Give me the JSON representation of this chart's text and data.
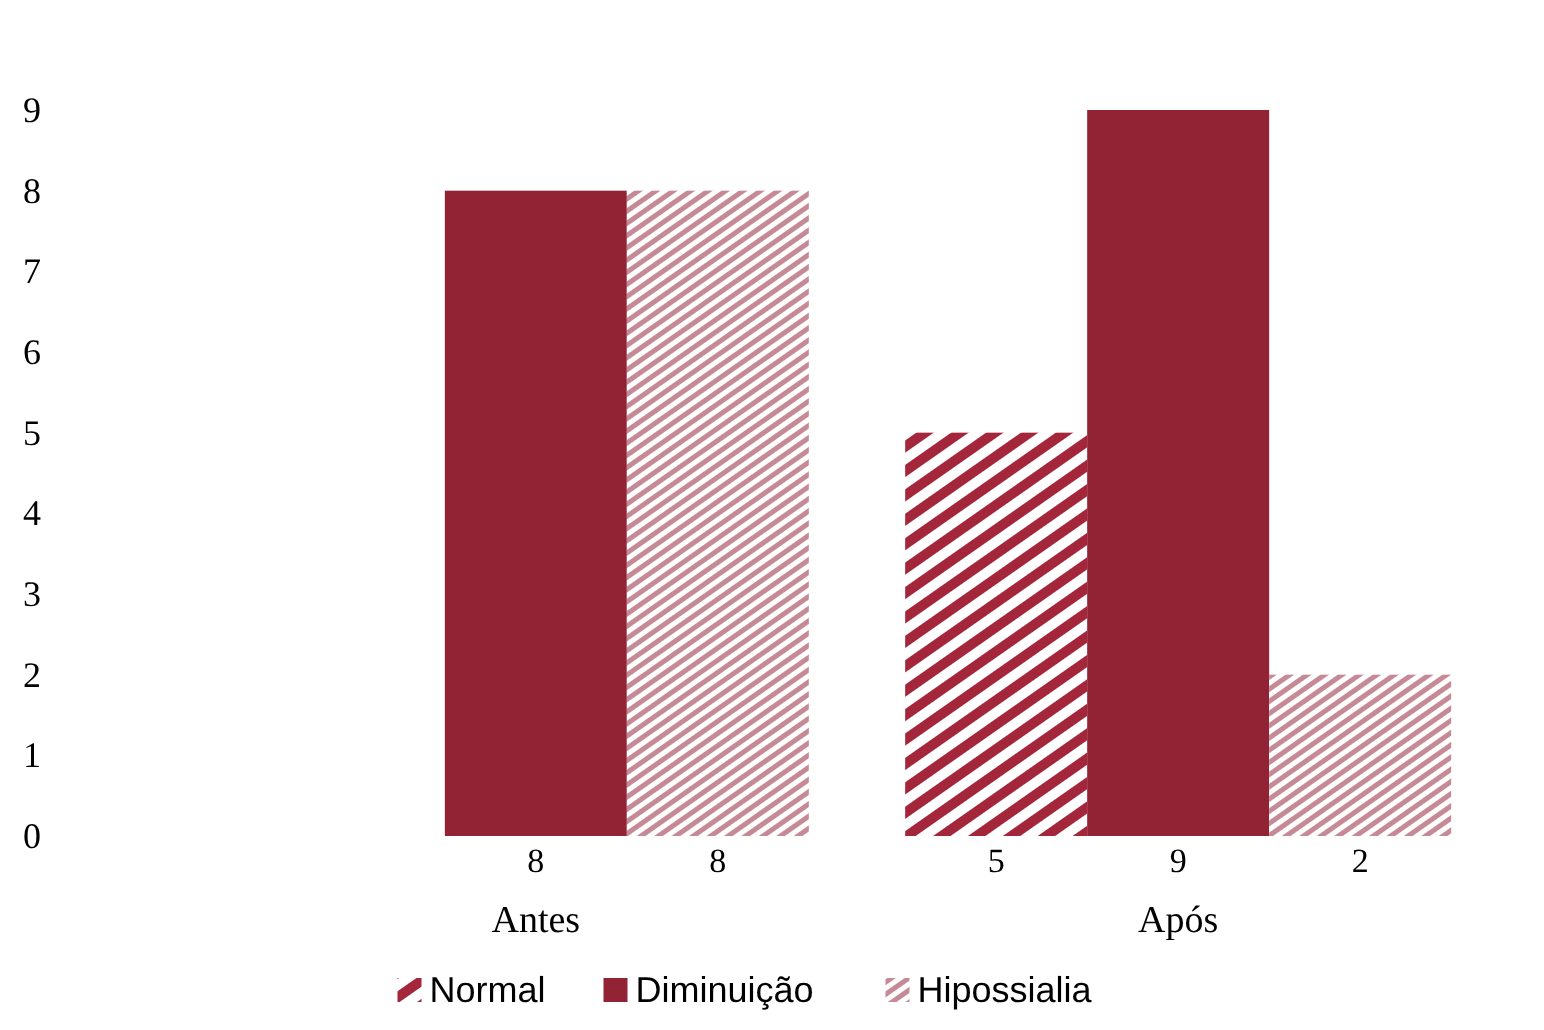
{
  "chart_data": {
    "type": "bar",
    "categories": [
      "Antes",
      "Após"
    ],
    "series": [
      {
        "name": "Normal",
        "color": "#a3263b",
        "values": [
          0,
          5
        ],
        "value_labels": [
          null,
          "5"
        ]
      },
      {
        "name": "Diminuição",
        "color": "#922335",
        "values": [
          8,
          9
        ],
        "value_labels": [
          "8",
          "9"
        ]
      },
      {
        "name": "Hipossialia",
        "color": "#c58a95",
        "values": [
          8,
          2
        ],
        "value_labels": [
          "8",
          "2"
        ]
      }
    ],
    "ylim": [
      0,
      9
    ],
    "yticks": [
      0,
      1,
      2,
      3,
      4,
      5,
      6,
      7,
      8,
      9
    ],
    "grid": false,
    "legend": "bottom"
  }
}
